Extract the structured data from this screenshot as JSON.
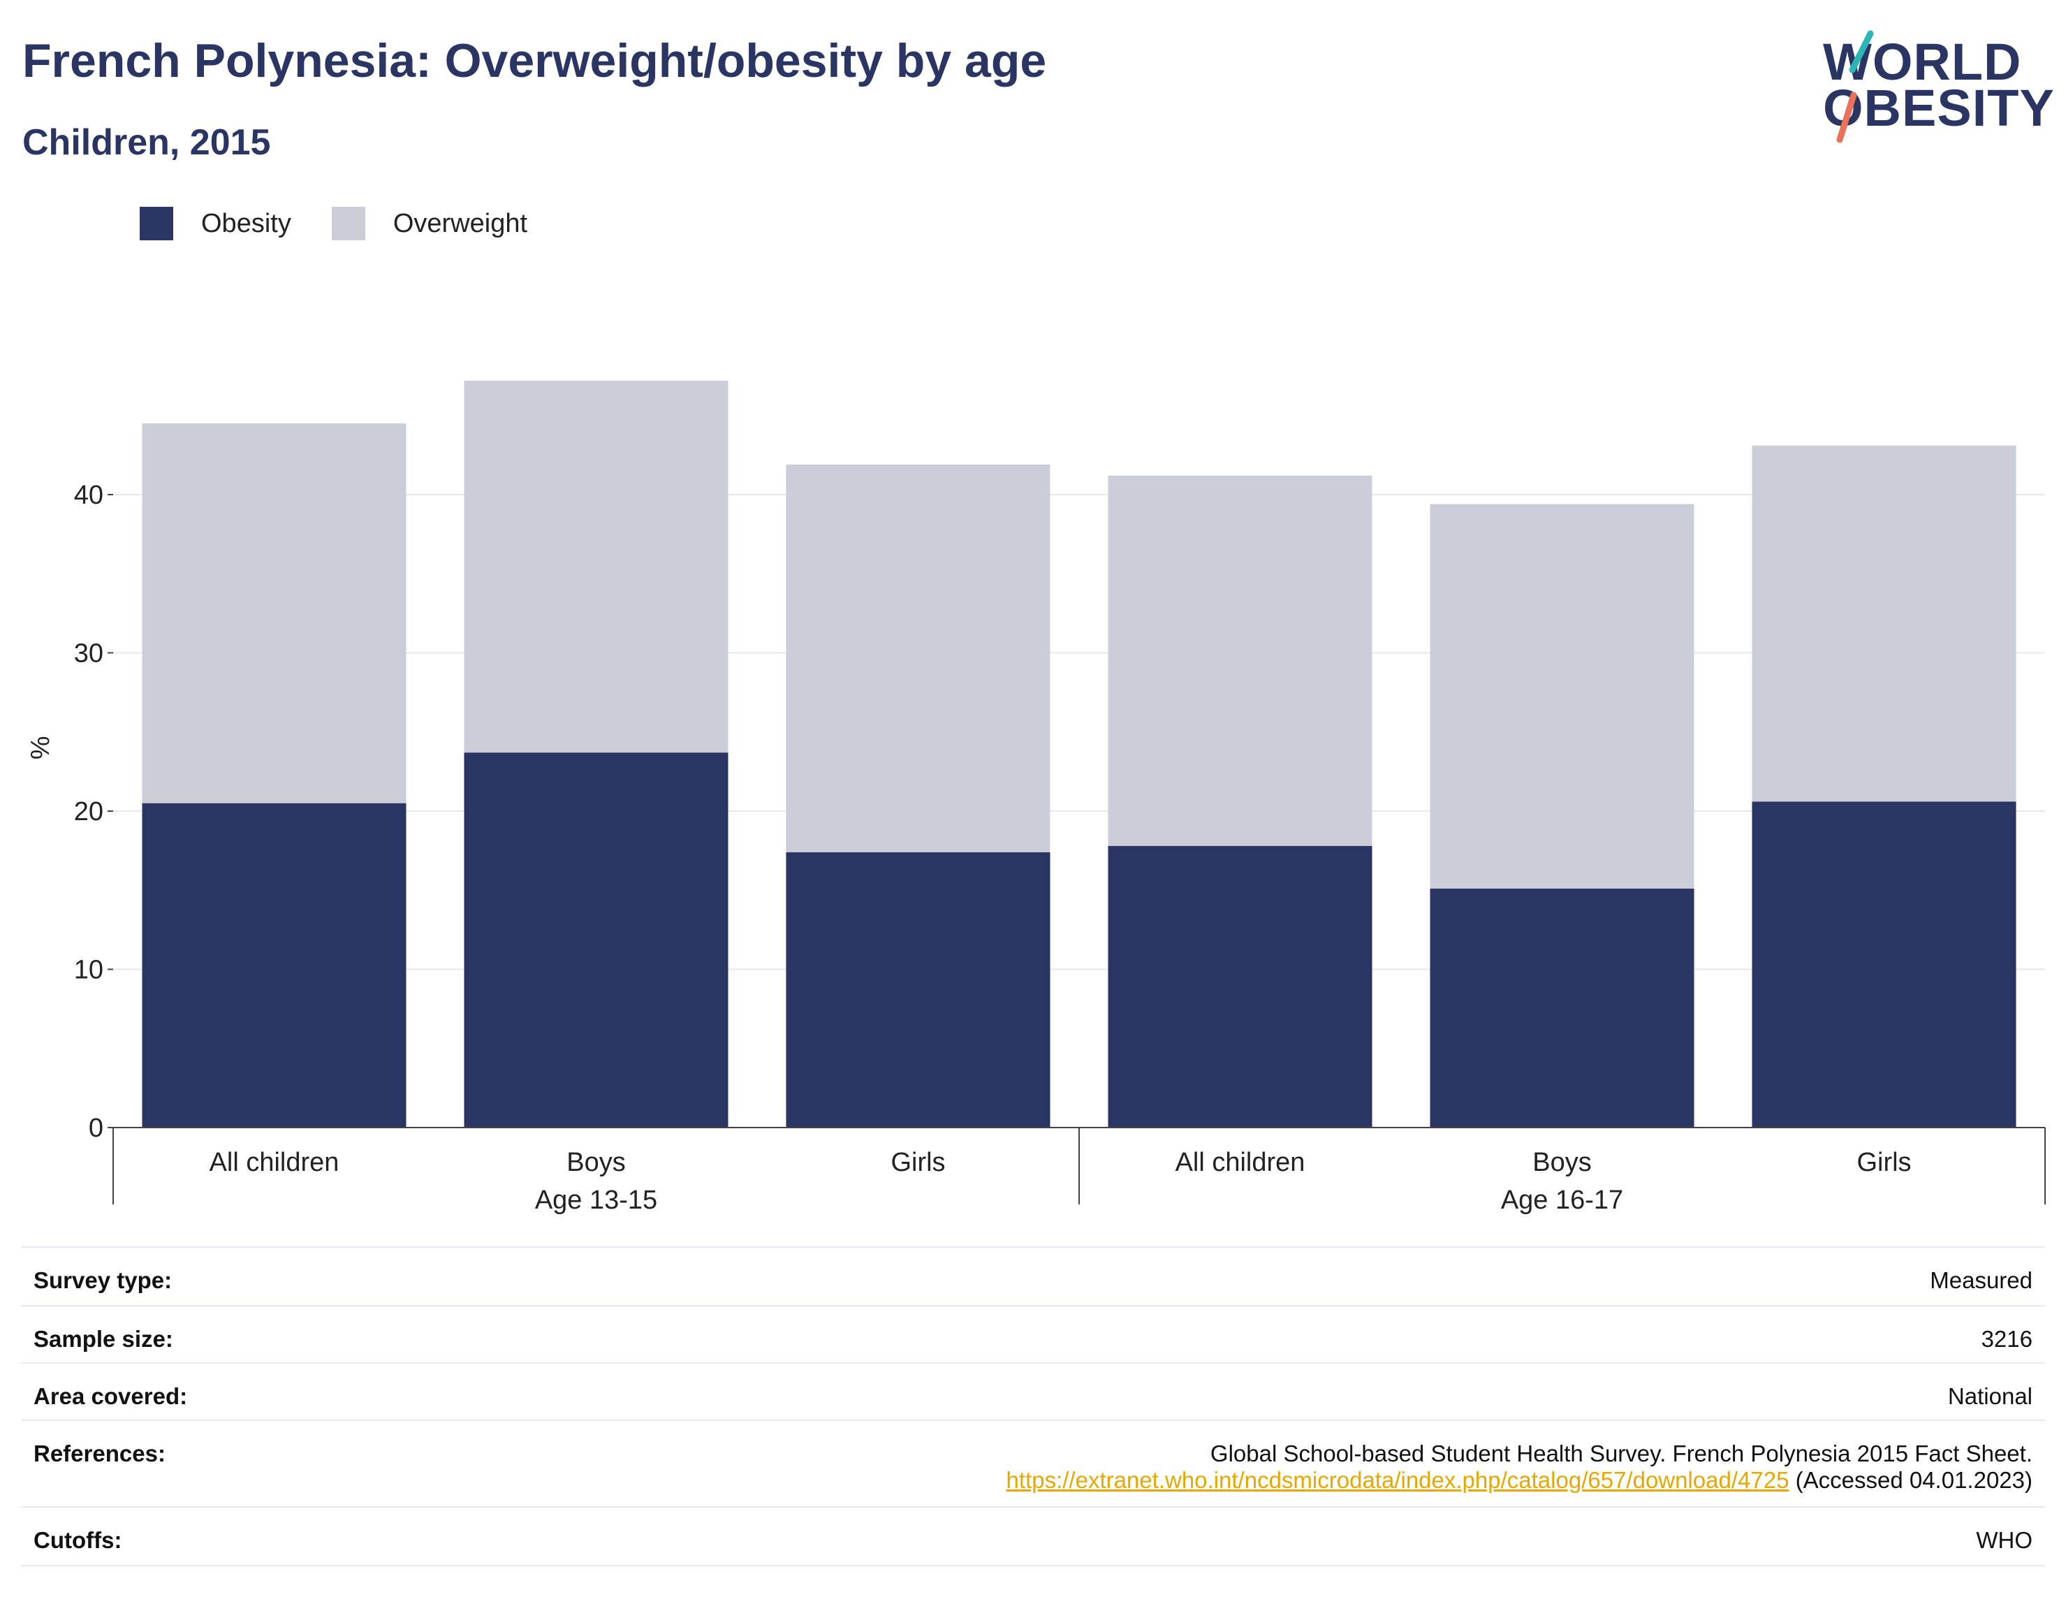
{
  "title": "French Polynesia: Overweight/obesity by age",
  "subtitle": "Children, 2015",
  "logo": {
    "line1": "WORLD",
    "line2": "OBESITY"
  },
  "colors": {
    "obesity": "#2a3563",
    "overweight": "#cbcdd8",
    "title": "#2a3563",
    "link": "#e6a800",
    "logo_teal": "#2bb5b5",
    "logo_coral": "#e8735a"
  },
  "legend": {
    "obesity": "Obesity",
    "overweight": "Overweight"
  },
  "chart_data": {
    "type": "bar",
    "stacked": true,
    "ylabel": "%",
    "ylim": [
      0,
      50
    ],
    "yticks": [
      0,
      10,
      20,
      30,
      40
    ],
    "grid": true,
    "legend_position": "top-left",
    "groups": [
      {
        "label": "Age 13-15",
        "categories": [
          "All children",
          "Boys",
          "Girls"
        ]
      },
      {
        "label": "Age 16-17",
        "categories": [
          "All children",
          "Boys",
          "Girls"
        ]
      }
    ],
    "categories": [
      "All children",
      "Boys",
      "Girls",
      "All children",
      "Boys",
      "Girls"
    ],
    "series": [
      {
        "name": "Obesity",
        "values": [
          20.5,
          23.7,
          17.4,
          17.8,
          15.1,
          20.6
        ]
      },
      {
        "name": "Overweight",
        "values": [
          24.0,
          23.5,
          24.5,
          23.4,
          24.3,
          22.5
        ]
      }
    ]
  },
  "meta": {
    "survey_type": {
      "label": "Survey type:",
      "value": "Measured"
    },
    "sample_size": {
      "label": "Sample size:",
      "value": "3216"
    },
    "area_covered": {
      "label": "Area covered:",
      "value": "National"
    },
    "references": {
      "label": "References:",
      "text": "Global School-based Student Health Survey. French Polynesia 2015 Fact Sheet.",
      "url": "https://extranet.who.int/ncdsmicrodata/index.php/catalog/657/download/4725",
      "accessed": " (Accessed 04.01.2023)"
    },
    "cutoffs": {
      "label": "Cutoffs:",
      "value": "WHO"
    }
  }
}
